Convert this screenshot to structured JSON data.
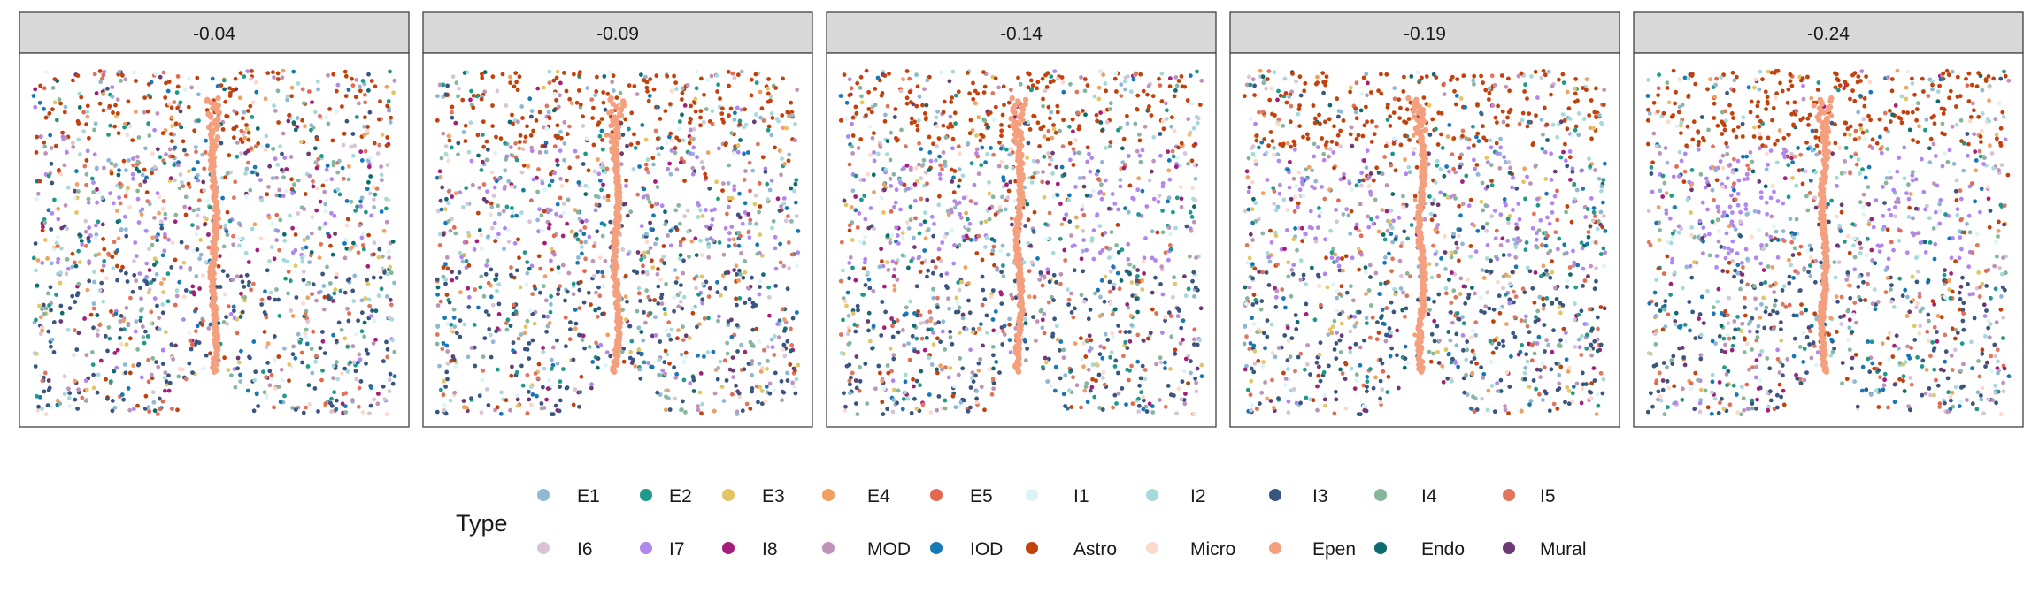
{
  "chart_data": {
    "type": "scatter",
    "facet_by": "slice",
    "facets": [
      "-0.04",
      "-0.09",
      "-0.14",
      "-0.19",
      "-0.24"
    ],
    "legend": {
      "title": "Type",
      "position": "bottom",
      "entries": [
        {
          "name": "E1",
          "color": "#8fb8d4"
        },
        {
          "name": "E2",
          "color": "#1f9a8a"
        },
        {
          "name": "E3",
          "color": "#e3c565"
        },
        {
          "name": "E4",
          "color": "#f0a061"
        },
        {
          "name": "E5",
          "color": "#e4684f"
        },
        {
          "name": "I1",
          "color": "#ddf4f7"
        },
        {
          "name": "I2",
          "color": "#a6dada"
        },
        {
          "name": "I3",
          "color": "#3a5580"
        },
        {
          "name": "I4",
          "color": "#86b69b"
        },
        {
          "name": "I5",
          "color": "#e0765e"
        },
        {
          "name": "I6",
          "color": "#d8c4d8"
        },
        {
          "name": "I7",
          "color": "#b186ee"
        },
        {
          "name": "I8",
          "color": "#a51f7a"
        },
        {
          "name": "MOD",
          "color": "#bd93ba"
        },
        {
          "name": "IOD",
          "color": "#1778b8"
        },
        {
          "name": "Astro",
          "color": "#c2410c"
        },
        {
          "name": "Micro",
          "color": "#fbd9cc"
        },
        {
          "name": "Epen",
          "color": "#f4a07e"
        },
        {
          "name": "Endo",
          "color": "#0e6b6e"
        },
        {
          "name": "Mural",
          "color": "#6a3a72"
        }
      ]
    },
    "axes_visible": false,
    "grid": false,
    "strip_fill": "#d9d9d9"
  }
}
